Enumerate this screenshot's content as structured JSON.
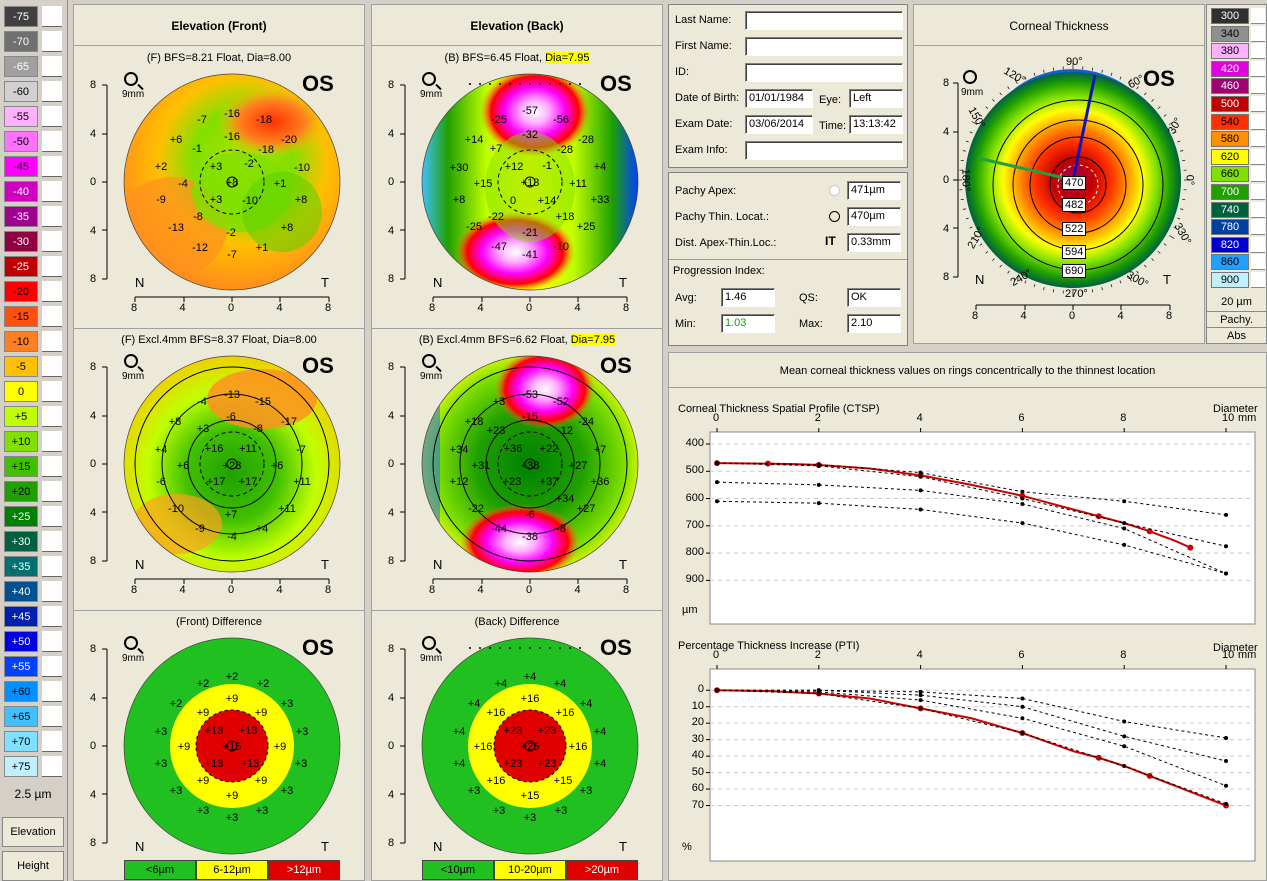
{
  "left_scale": {
    "items": [
      {
        "label": "-75",
        "color": "#404040"
      },
      {
        "label": "-70",
        "color": "#707070"
      },
      {
        "label": "-65",
        "color": "#a0a0a0"
      },
      {
        "label": "-60",
        "color": "#d0d0d0"
      },
      {
        "label": "-55",
        "color": "#ffb0ff"
      },
      {
        "label": "-50",
        "color": "#ff70ff"
      },
      {
        "label": "-45",
        "color": "#ff00ff"
      },
      {
        "label": "-40",
        "color": "#d000c0"
      },
      {
        "label": "-35",
        "color": "#a00090"
      },
      {
        "label": "-30",
        "color": "#900040"
      },
      {
        "label": "-25",
        "color": "#c00000"
      },
      {
        "label": "-20",
        "color": "#ff0000"
      },
      {
        "label": "-15",
        "color": "#ff5010"
      },
      {
        "label": "-10",
        "color": "#ff8020"
      },
      {
        "label": "-5",
        "color": "#ffc000"
      },
      {
        "label": "0",
        "color": "#ffff00"
      },
      {
        "label": "+5",
        "color": "#c0ff00"
      },
      {
        "label": "+10",
        "color": "#80e000"
      },
      {
        "label": "+15",
        "color": "#40c000"
      },
      {
        "label": "+20",
        "color": "#20a000"
      },
      {
        "label": "+25",
        "color": "#008000"
      },
      {
        "label": "+30",
        "color": "#006040"
      },
      {
        "label": "+35",
        "color": "#007070"
      },
      {
        "label": "+40",
        "color": "#005090"
      },
      {
        "label": "+45",
        "color": "#0020b0"
      },
      {
        "label": "+50",
        "color": "#0000e0"
      },
      {
        "label": "+55",
        "color": "#0040ff"
      },
      {
        "label": "+60",
        "color": "#0090ff"
      },
      {
        "label": "+65",
        "color": "#40c0ff"
      },
      {
        "label": "+70",
        "color": "#80e0ff"
      },
      {
        "label": "+75",
        "color": "#c0f0ff"
      }
    ],
    "step": "2.5 µm",
    "mode1": "Elevation",
    "mode2": "Height"
  },
  "front_column": {
    "title": "Elevation (Front)",
    "map1": {
      "caption": "(F)  BFS=8.21 Float, Dia=8.00",
      "eye": "OS",
      "zoom": "9mm"
    },
    "map2": {
      "caption": "(F) Excl.4mm  BFS=8.37 Float, Dia=8.00",
      "eye": "OS",
      "zoom": "9mm"
    },
    "map3": {
      "caption": "(Front) Difference",
      "eye": "OS",
      "zoom": "9mm"
    },
    "legend": [
      {
        "label": "<6µm",
        "color": "#20c020"
      },
      {
        "label": "6-12µm",
        "color": "#ffff00"
      },
      {
        "label": ">12µm",
        "color": "#e00000"
      }
    ]
  },
  "back_column": {
    "title": "Elevation (Back)",
    "map1": {
      "caption_pre": "(B)  BFS=6.45 Float, ",
      "caption_hl": "Dia=7.95",
      "eye": "OS",
      "zoom": "9mm"
    },
    "map2": {
      "caption_pre": "(B) Excl.4mm  BFS=6.62 Float, ",
      "caption_hl": "Dia=7.95",
      "eye": "OS",
      "zoom": "9mm"
    },
    "map3": {
      "caption": "(Back) Difference",
      "eye": "OS",
      "zoom": "9mm"
    },
    "legend": [
      {
        "label": "<10µm",
        "color": "#20c020"
      },
      {
        "label": "10-20µm",
        "color": "#ffff00"
      },
      {
        "label": ">20µm",
        "color": "#e00000"
      }
    ]
  },
  "axis": {
    "y": [
      "8",
      "4",
      "0",
      "4",
      "8"
    ],
    "x": [
      "8",
      "4",
      "0",
      "4",
      "8"
    ],
    "n": "N",
    "t": "T"
  },
  "patient": {
    "last_name_label": "Last Name:",
    "last_name": "",
    "first_name_label": "First Name:",
    "first_name": "",
    "id_label": "ID:",
    "id": "",
    "dob_label": "Date of Birth:",
    "dob": "01/01/1984",
    "eye_label": "Eye:",
    "eye": "Left",
    "exam_date_label": "Exam Date:",
    "exam_date": "03/06/2014",
    "time_label": "Time:",
    "time": "13:13:42",
    "exam_info_label": "Exam Info:",
    "exam_info": ""
  },
  "pachy": {
    "apex_label": "Pachy Apex:",
    "apex": "471µm",
    "thin_label": "Pachy Thin. Locat.:",
    "thin": "470µm",
    "dist_label": "Dist. Apex-Thin.Loc.:",
    "dist_icon": "IT",
    "dist": "0.33mm",
    "progression_label": "Progression Index:",
    "avg_label": "Avg:",
    "avg": "1.46",
    "qs_label": "QS:",
    "qs": "OK",
    "min_label": "Min:",
    "min": "1.03",
    "max_label": "Max:",
    "max": "2.10"
  },
  "thickness_map": {
    "title": "Corneal Thickness",
    "eye": "OS",
    "zoom": "9mm",
    "values": [
      "470",
      "482",
      "522",
      "594",
      "690"
    ],
    "angles": [
      "90°",
      "60°",
      "30°",
      "0°",
      "330°",
      "300°",
      "270°",
      "240°",
      "210°",
      "180°",
      "150°",
      "120°"
    ],
    "n": "N",
    "t": "T",
    "y": [
      "8",
      "4",
      "0",
      "4",
      "8"
    ],
    "x": [
      "8",
      "4",
      "0",
      "4",
      "8"
    ]
  },
  "pachy_scale": {
    "items": [
      {
        "label": "300",
        "color": "#303030"
      },
      {
        "label": "340",
        "color": "#909090"
      },
      {
        "label": "380",
        "color": "#ffb0ff"
      },
      {
        "label": "420",
        "color": "#e000e0"
      },
      {
        "label": "460",
        "color": "#a00070"
      },
      {
        "label": "500",
        "color": "#c00000"
      },
      {
        "label": "540",
        "color": "#ff3000"
      },
      {
        "label": "580",
        "color": "#ff9000"
      },
      {
        "label": "620",
        "color": "#ffff00"
      },
      {
        "label": "660",
        "color": "#80e000"
      },
      {
        "label": "700",
        "color": "#20a000"
      },
      {
        "label": "740",
        "color": "#006040"
      },
      {
        "label": "780",
        "color": "#0040a0"
      },
      {
        "label": "820",
        "color": "#0000d0"
      },
      {
        "label": "860",
        "color": "#20a0ff"
      },
      {
        "label": "900",
        "color": "#c0f0ff"
      }
    ],
    "step": "20 µm",
    "mode1": "Pachy.",
    "mode2": "Abs"
  },
  "charts_panel": {
    "title": "Mean corneal thickness values on rings concentrically to the thinnest location",
    "diameter_label": "Diameter",
    "mm_label": "mm"
  },
  "chart_data": [
    {
      "type": "line",
      "title": "Corneal Thickness Spatial Profile (CTSP)",
      "xlabel": "Diameter",
      "x_ticks": [
        "0",
        "2",
        "4",
        "6",
        "8",
        "10"
      ],
      "y_ticks": [
        "400",
        "500",
        "600",
        "700",
        "800",
        "900"
      ],
      "yunit": "µm",
      "xlim": [
        0,
        10
      ],
      "ylim": [
        400,
        950
      ],
      "series": [
        {
          "x": [
            0,
            0.5,
            1,
            1.5,
            2,
            3,
            4,
            5,
            6,
            7,
            7.5,
            8,
            8.5,
            9,
            9.3
          ],
          "values": [
            470,
            471,
            472,
            474,
            477,
            490,
            515,
            550,
            590,
            640,
            665,
            690,
            720,
            755,
            780
          ],
          "color": "#cc0000"
        },
        {
          "x": [
            0,
            2,
            4,
            6,
            8,
            10
          ],
          "values": [
            470,
            475,
            505,
            575,
            610,
            660
          ]
        },
        {
          "x": [
            0,
            2,
            4,
            6,
            8,
            10
          ],
          "values": [
            470,
            480,
            520,
            600,
            690,
            775
          ]
        },
        {
          "x": [
            0,
            2,
            4,
            6,
            8,
            10
          ],
          "values": [
            540,
            550,
            570,
            620,
            710,
            875
          ]
        },
        {
          "x": [
            0,
            2,
            4,
            6,
            8,
            10
          ],
          "values": [
            610,
            617,
            640,
            690,
            770,
            875
          ]
        }
      ]
    },
    {
      "type": "line",
      "title": "Percentage Thickness Increase (PTI)",
      "xlabel": "Diameter",
      "x_ticks": [
        "0",
        "2",
        "4",
        "6",
        "8",
        "10"
      ],
      "y_ticks": [
        "0",
        "10",
        "20",
        "30",
        "40",
        "50",
        "60",
        "70"
      ],
      "yunit": "%",
      "xlim": [
        0,
        10
      ],
      "ylim": [
        -5,
        80
      ],
      "series": [
        {
          "x": [
            0,
            1,
            2,
            3,
            4,
            5,
            6,
            7,
            7.5,
            8,
            8.5,
            9,
            10
          ],
          "values": [
            0,
            0.5,
            2,
            5,
            11,
            17,
            26,
            37,
            41,
            46,
            52,
            58,
            70
          ],
          "color": "#cc0000"
        },
        {
          "x": [
            0,
            2,
            4,
            6,
            8,
            10
          ],
          "values": [
            0,
            0,
            1,
            5,
            19,
            29
          ]
        },
        {
          "x": [
            0,
            2,
            4,
            6,
            8,
            10
          ],
          "values": [
            0,
            0,
            3,
            10,
            28,
            43
          ]
        },
        {
          "x": [
            0,
            2,
            4,
            6,
            8,
            10
          ],
          "values": [
            0,
            1,
            6,
            17,
            34,
            58
          ]
        },
        {
          "x": [
            0,
            2,
            4,
            6,
            8,
            10
          ],
          "values": [
            0,
            2,
            11,
            26,
            46,
            69
          ]
        }
      ]
    }
  ]
}
